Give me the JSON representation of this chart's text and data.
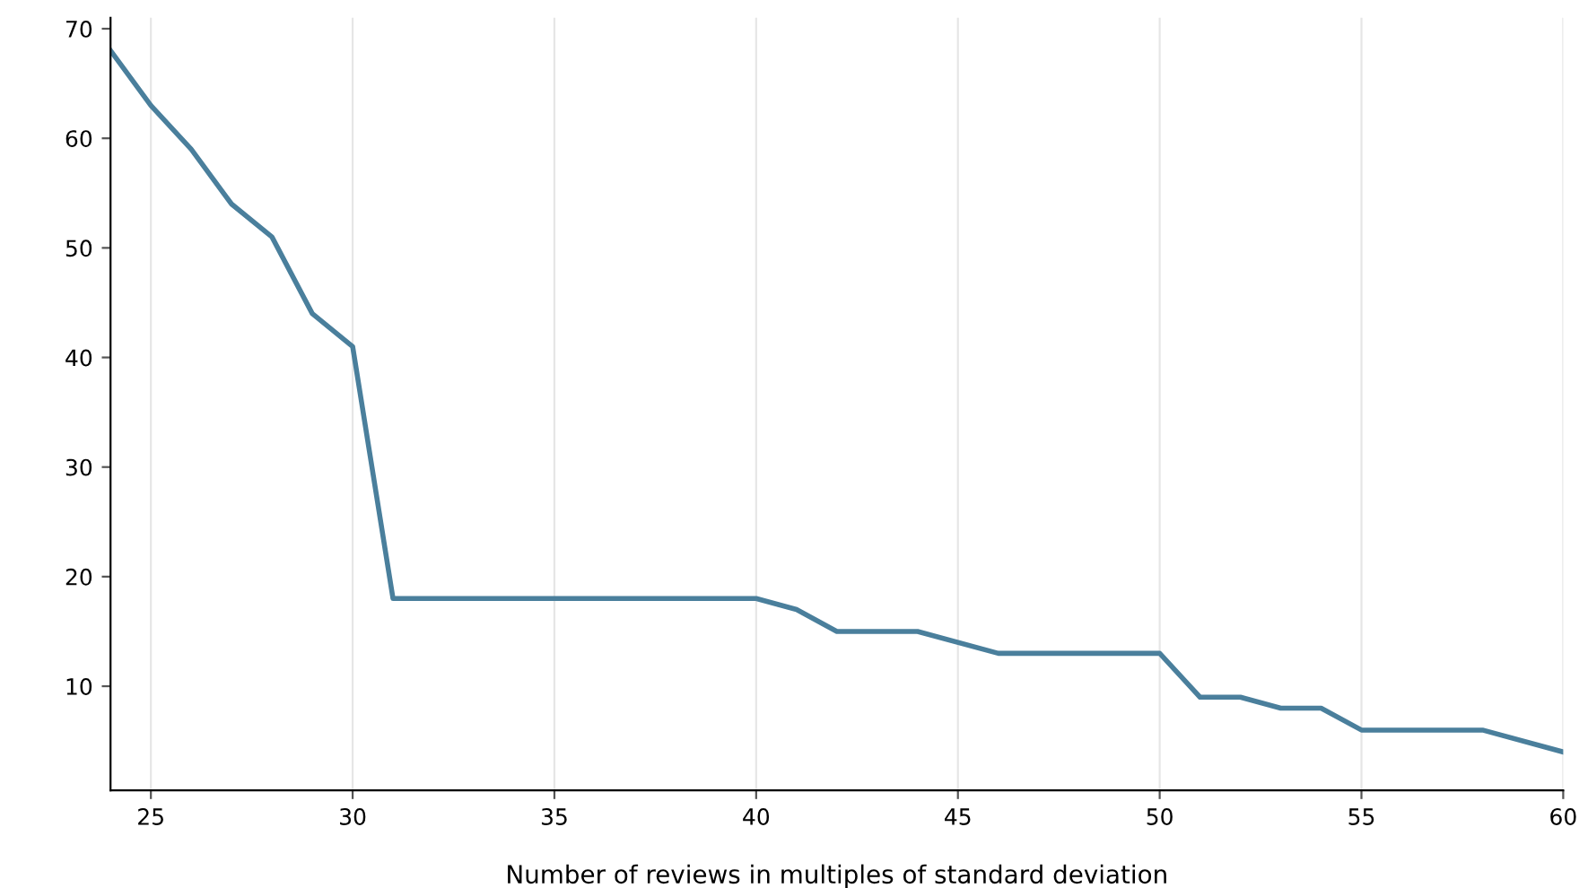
{
  "chart_data": {
    "type": "line",
    "xlabel": "Number of reviews in multiples of standard deviation",
    "x": [
      24,
      25,
      26,
      27,
      28,
      29,
      30,
      31,
      40,
      41,
      42,
      44,
      46,
      50,
      51,
      52,
      53,
      54,
      55,
      58,
      60
    ],
    "series": [
      {
        "color": "#4a7f9c",
        "values": [
          68,
          63,
          59,
          54,
          51,
          44,
          41,
          18,
          18,
          17,
          15,
          15,
          13,
          13,
          9,
          9,
          8,
          8,
          6,
          6,
          4
        ]
      }
    ],
    "xlim": [
      24,
      60
    ],
    "xticks": [
      25,
      30,
      35,
      40,
      45,
      50,
      55,
      60
    ],
    "ylim": [
      0.5,
      71
    ],
    "yticks": [
      10,
      20,
      30,
      40,
      50,
      60,
      70
    ],
    "grid": "x",
    "marker": "none",
    "line_style": "solid"
  }
}
